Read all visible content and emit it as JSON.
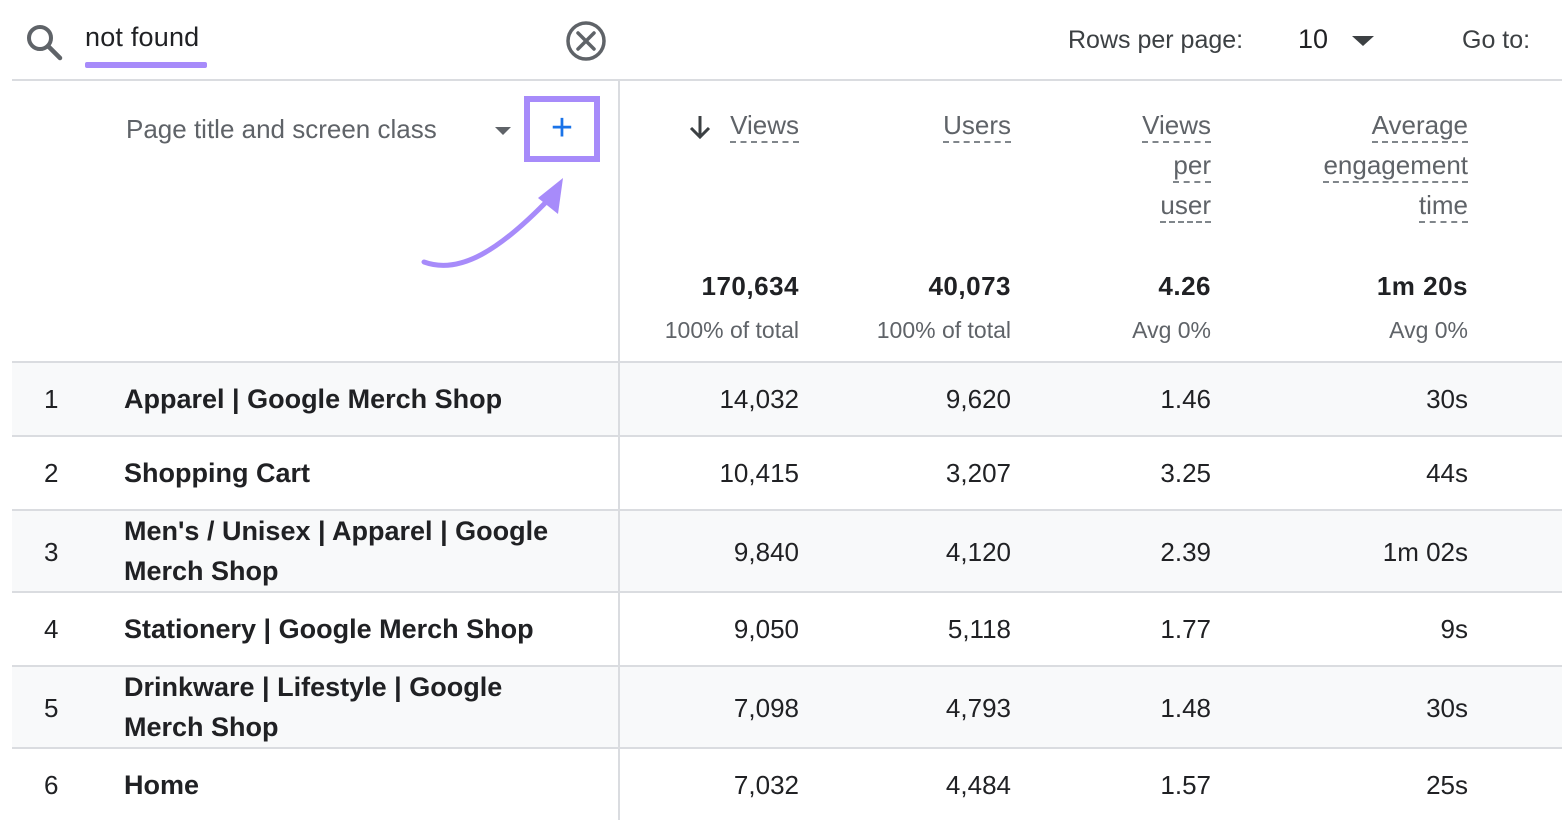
{
  "toolbar": {
    "search_value": "not found",
    "rows_per_page_label": "Rows per page:",
    "rows_per_page_value": "10",
    "go_to_label": "Go to:"
  },
  "colors": {
    "highlight": "#a78bfa",
    "accent_blue": "#1a73e8",
    "row_shade": "#f8f9fa",
    "divider": "#dadce0"
  },
  "table": {
    "dimension_label": "Page title and screen class",
    "add_dimension_symbol": "+",
    "sort_indicator_icon": "arrow-down-icon",
    "columns": [
      {
        "line1": "Views",
        "line2": "",
        "line3": "",
        "total": "170,634",
        "sub": "100% of total"
      },
      {
        "line1": "Users",
        "line2": "",
        "line3": "",
        "total": "40,073",
        "sub": "100% of total"
      },
      {
        "line1": "Views",
        "line2": "per",
        "line3": "user",
        "total": "4.26",
        "sub": "Avg 0%"
      },
      {
        "line1": "Average",
        "line2": "engagement",
        "line3": "time",
        "total": "1m 20s",
        "sub": "Avg 0%"
      }
    ],
    "rows": [
      {
        "num": "1",
        "title": "Apparel | Google Merch Shop",
        "views": "14,032",
        "users": "9,620",
        "vpu": "1.46",
        "aet": "30s"
      },
      {
        "num": "2",
        "title": "Shopping Cart",
        "views": "10,415",
        "users": "3,207",
        "vpu": "3.25",
        "aet": "44s"
      },
      {
        "num": "3",
        "title": "Men's / Unisex | Apparel | Google Merch Shop",
        "views": "9,840",
        "users": "4,120",
        "vpu": "2.39",
        "aet": "1m 02s"
      },
      {
        "num": "4",
        "title": "Stationery | Google Merch Shop",
        "views": "9,050",
        "users": "5,118",
        "vpu": "1.77",
        "aet": "9s"
      },
      {
        "num": "5",
        "title": "Drinkware | Lifestyle | Google Merch Shop",
        "views": "7,098",
        "users": "4,793",
        "vpu": "1.48",
        "aet": "30s"
      },
      {
        "num": "6",
        "title": "Home",
        "views": "7,032",
        "users": "4,484",
        "vpu": "1.57",
        "aet": "25s"
      }
    ]
  }
}
